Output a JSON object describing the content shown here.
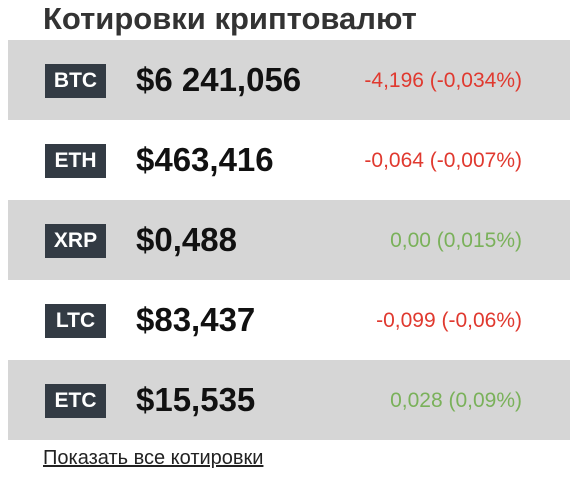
{
  "widget": {
    "title": "Котировки криптовалют",
    "show_all_link": "Показать все котировки",
    "colors": {
      "shaded_row": "#d6d6d6",
      "ticker_badge": "#333b44",
      "negative": "#e0392f",
      "positive": "#7ab15a"
    },
    "quotes": [
      {
        "ticker": "BTC",
        "price": "$6 241,056",
        "change": "-4,196 (-0,034%)",
        "direction": "down"
      },
      {
        "ticker": "ETH",
        "price": "$463,416",
        "change": "-0,064 (-0,007%)",
        "direction": "down"
      },
      {
        "ticker": "XRP",
        "price": "$0,488",
        "change": "0,00 (0,015%)",
        "direction": "up"
      },
      {
        "ticker": "LTC",
        "price": "$83,437",
        "change": "-0,099 (-0,06%)",
        "direction": "down"
      },
      {
        "ticker": "ETC",
        "price": "$15,535",
        "change": "0,028 (0,09%)",
        "direction": "up"
      }
    ]
  }
}
